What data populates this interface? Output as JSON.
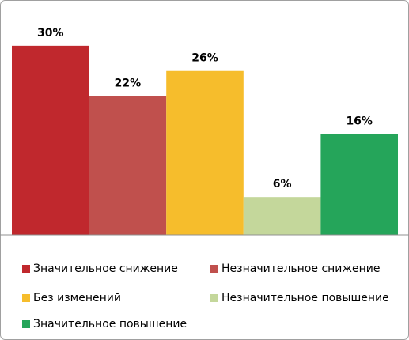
{
  "chart_data": {
    "type": "bar",
    "categories": [
      null
    ],
    "ylim": [
      0,
      35
    ],
    "series": [
      {
        "name": "Значительное снижение",
        "color": "#c0282d",
        "values": [
          30
        ],
        "value_labels": [
          "30%"
        ]
      },
      {
        "name": "Незначительное снижение",
        "color": "#c0504d",
        "values": [
          22
        ],
        "value_labels": [
          "22%"
        ]
      },
      {
        "name": "Без изменений",
        "color": "#f6bd2c",
        "values": [
          26
        ],
        "value_labels": [
          "26%"
        ]
      },
      {
        "name": "Незначительное повышение",
        "color": "#c4d79b",
        "values": [
          6
        ],
        "value_labels": [
          "6%"
        ]
      },
      {
        "name": "Значительное повышение",
        "color": "#25a55a",
        "values": [
          16
        ],
        "value_labels": [
          "16%"
        ]
      }
    ]
  }
}
